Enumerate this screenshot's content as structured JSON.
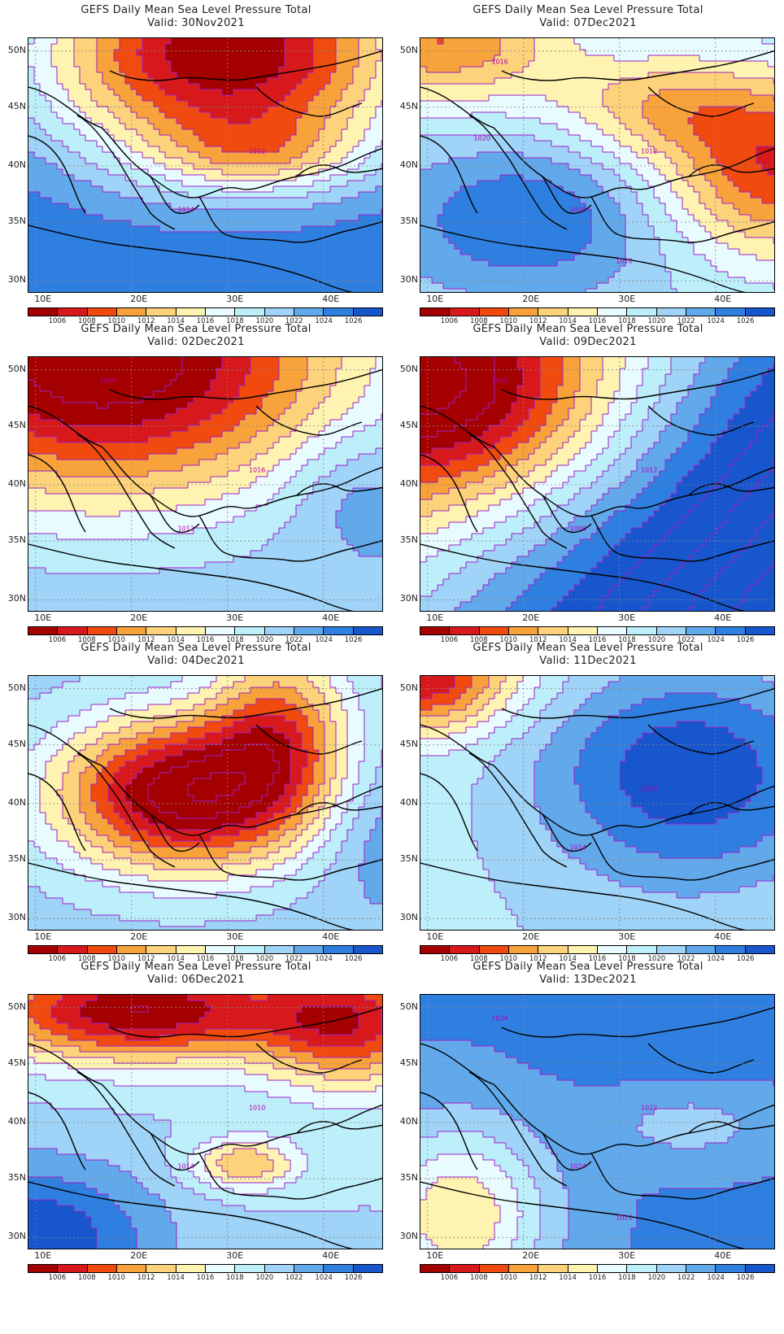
{
  "panels": [
    {
      "title": "GEFS Daily Mean Sea Level Pressure Total",
      "valid": "Valid: 30Nov2021",
      "scenario": "low-north",
      "isobar_labels": [
        "1014",
        "1012"
      ]
    },
    {
      "title": "GEFS Daily Mean Sea Level Pressure Total",
      "valid": "Valid: 07Dec2021",
      "scenario": "mixed-east",
      "isobar_labels": [
        "1010",
        "1012",
        "1016",
        "1018",
        "1020"
      ]
    },
    {
      "title": "GEFS Daily Mean Sea Level Pressure Total",
      "valid": "Valid: 02Dec2021",
      "scenario": "low-northwest",
      "isobar_labels": [
        "1012",
        "1016",
        "1020"
      ]
    },
    {
      "title": "GEFS Daily Mean Sea Level Pressure Total",
      "valid": "Valid: 09Dec2021",
      "scenario": "gradient-nw-se",
      "isobar_labels": [
        "1008",
        "1012",
        "1012"
      ]
    },
    {
      "title": "GEFS Daily Mean Sea Level Pressure Total",
      "valid": "Valid: 04Dec2021",
      "scenario": "low-center",
      "isobar_labels": []
    },
    {
      "title": "GEFS Daily Mean Sea Level Pressure Total",
      "valid": "Valid: 11Dec2021",
      "scenario": "high-east",
      "isobar_labels": [
        "1014",
        "1024"
      ]
    },
    {
      "title": "GEFS Daily Mean Sea Level Pressure Total",
      "valid": "Valid: 06Dec2021",
      "scenario": "low-band",
      "isobar_labels": [
        "1014",
        "1010"
      ]
    },
    {
      "title": "GEFS Daily Mean Sea Level Pressure Total",
      "valid": "Valid: 13Dec2021",
      "scenario": "high-all",
      "isobar_labels": [
        "1024",
        "1022",
        "1024",
        "1020"
      ]
    }
  ],
  "axes": {
    "lat_labels": [
      "50N",
      "45N",
      "40N",
      "35N",
      "30N"
    ],
    "lon_labels": [
      "10E",
      "20E",
      "30E",
      "40E"
    ]
  },
  "colorbar": {
    "labels": [
      "1006",
      "1008",
      "1010",
      "1012",
      "1014",
      "1016",
      "1018",
      "1020",
      "1022",
      "1024",
      "1026"
    ],
    "colors": [
      "#a50000",
      "#d7191c",
      "#f04a0f",
      "#f7a23a",
      "#fcd27b",
      "#fef3b0",
      "#e8fbff",
      "#bdeffb",
      "#9fd3f7",
      "#62a9ec",
      "#2f7fe0",
      "#1756cc"
    ]
  }
}
